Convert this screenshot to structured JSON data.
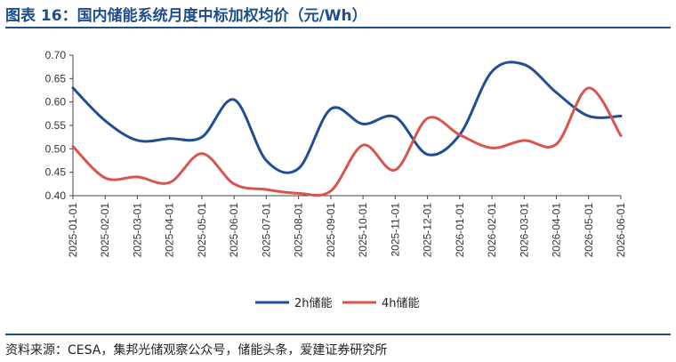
{
  "title": "图表 16：国内储能系统月度中标加权均价（元/Wh）",
  "source": "资料来源：CESA，集邦光储观察公众号，储能头条，爱建证券研究所",
  "chart_data": {
    "type": "line",
    "title": "图表 16：国内储能系统月度中标加权均价（元/Wh）",
    "ylim": [
      0.4,
      0.7
    ],
    "yticks": [
      "0.70",
      "0.65",
      "0.60",
      "0.55",
      "0.50",
      "0.45",
      "0.40"
    ],
    "categories": [
      "2025-01-01",
      "2025-02-01",
      "2025-03-01",
      "2025-04-01",
      "2025-05-01",
      "2025-06-01",
      "2025-07-01",
      "2025-08-01",
      "2025-09-01",
      "2025-10-01",
      "2025-11-01",
      "2025-12-01",
      "2026-01-01",
      "2026-02-01",
      "2026-03-01",
      "2026-04-01",
      "2026-05-01",
      "2026-06-01"
    ],
    "grid": false,
    "legend": "bottom",
    "series": [
      {
        "name": "2h储能",
        "color": "#1f4e96",
        "values": [
          0.63,
          0.56,
          0.518,
          0.522,
          0.525,
          0.605,
          0.475,
          0.458,
          0.585,
          0.553,
          0.568,
          0.488,
          0.53,
          0.665,
          0.68,
          0.62,
          0.57,
          0.57
        ]
      },
      {
        "name": "4h储能",
        "color": "#d9534f",
        "values": [
          0.505,
          0.438,
          0.44,
          0.428,
          0.49,
          0.425,
          0.413,
          0.405,
          0.41,
          0.508,
          0.455,
          0.565,
          0.53,
          0.502,
          0.518,
          0.51,
          0.63,
          0.528
        ]
      }
    ]
  }
}
